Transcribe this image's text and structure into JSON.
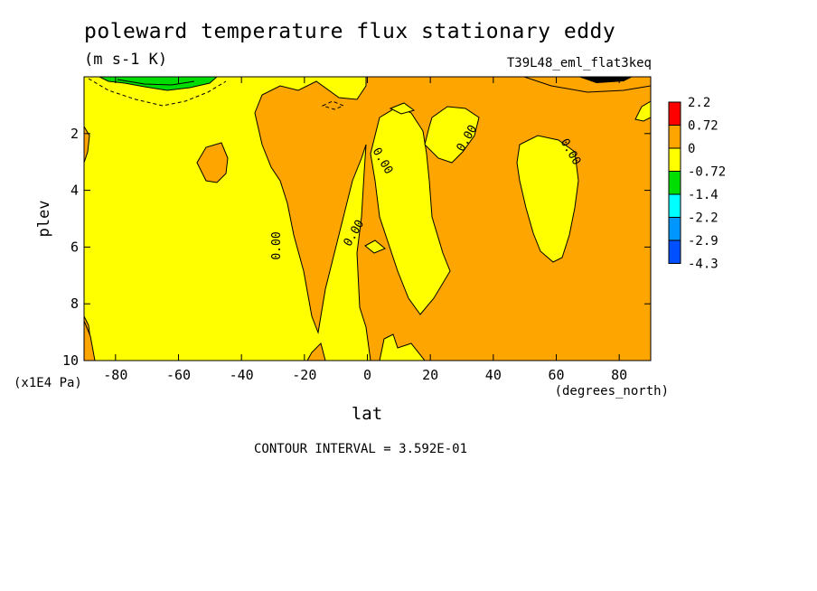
{
  "chart_data": {
    "type": "contour",
    "title": "poleward temperature flux stationary eddy",
    "units": "(m s-1 K)",
    "run_label": "T39L48_eml_flat3keq",
    "xlabel": "lat",
    "x_units": "(degrees_north)",
    "ylabel": "plev",
    "y_units": "(x1E4 Pa)",
    "xlim": [
      -90,
      90
    ],
    "ylim": [
      10,
      0
    ],
    "x_ticks": [
      -80,
      -60,
      -40,
      -20,
      0,
      20,
      40,
      60,
      80
    ],
    "y_ticks": [
      2,
      4,
      6,
      8,
      10
    ],
    "contour_interval_text": "CONTOUR INTERVAL = 3.592E-01",
    "contour_labels": [
      "0.00",
      "0.00",
      "0.00",
      "0.00",
      "0.00"
    ],
    "colorbar": {
      "labels": [
        "2.2",
        "0.72",
        "0",
        "-0.72",
        "-1.4",
        "-2.2",
        "-2.9",
        "-4.3"
      ],
      "colors": [
        "#ff0000",
        "#ffa500",
        "#ffff00",
        "#00dd00",
        "#00ffff",
        "#0096ff",
        "#0050ff"
      ]
    },
    "grid": false
  }
}
